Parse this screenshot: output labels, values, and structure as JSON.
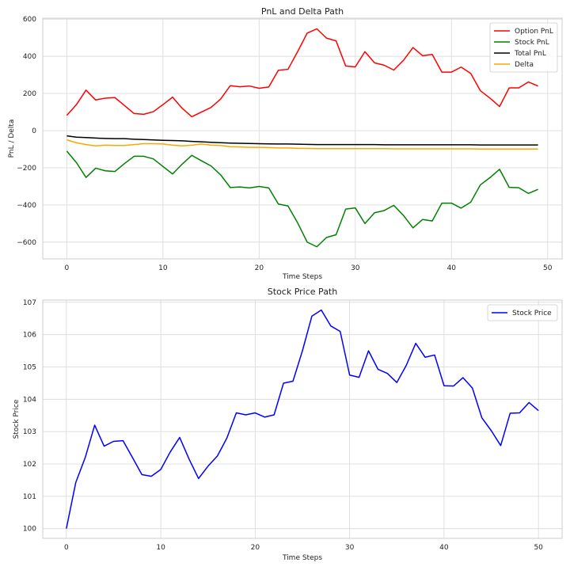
{
  "chart_data": [
    {
      "type": "line",
      "title": "PnL and Delta Path",
      "xlabel": "Time Steps",
      "ylabel": "PnL / Delta",
      "xlim": [
        -2.5,
        51.5
      ],
      "ylim": [
        -690,
        605
      ],
      "xticks": [
        0,
        10,
        20,
        30,
        40,
        50
      ],
      "yticks": [
        -600,
        -400,
        -200,
        0,
        200,
        400,
        600
      ],
      "grid": true,
      "legend": "top-right",
      "x": [
        0,
        1,
        2,
        3,
        4,
        5,
        6,
        7,
        8,
        9,
        10,
        11,
        12,
        13,
        14,
        15,
        16,
        17,
        18,
        19,
        20,
        21,
        22,
        23,
        24,
        25,
        26,
        27,
        28,
        29,
        30,
        31,
        32,
        33,
        34,
        35,
        36,
        37,
        38,
        39,
        40,
        41,
        42,
        43,
        44,
        45,
        46,
        47,
        48,
        49
      ],
      "series": [
        {
          "name": "Option PnL",
          "color": "#ff0000",
          "values": [
            82,
            140,
            218,
            165,
            175,
            178,
            135,
            92,
            88,
            102,
            140,
            180,
            120,
            75,
            100,
            125,
            170,
            242,
            236,
            240,
            228,
            235,
            325,
            330,
            425,
            525,
            548,
            498,
            483,
            348,
            343,
            425,
            365,
            352,
            326,
            378,
            447,
            403,
            410,
            315,
            315,
            342,
            308,
            215,
            175,
            130,
            230,
            230,
            262,
            240
          ]
        },
        {
          "name": "Stock PnL",
          "color": "#008000",
          "values": [
            -110,
            -172,
            -252,
            -202,
            -216,
            -220,
            -177,
            -138,
            -138,
            -152,
            -193,
            -233,
            -180,
            -133,
            -162,
            -190,
            -238,
            -306,
            -303,
            -308,
            -300,
            -308,
            -395,
            -405,
            -496,
            -600,
            -625,
            -575,
            -560,
            -422,
            -416,
            -500,
            -442,
            -430,
            -402,
            -456,
            -523,
            -478,
            -486,
            -390,
            -390,
            -417,
            -385,
            -292,
            -253,
            -208,
            -305,
            -307,
            -338,
            -316
          ]
        },
        {
          "name": "Total PnL",
          "color": "#000000",
          "values": [
            -28,
            -35,
            -37,
            -40,
            -42,
            -43,
            -43,
            -46,
            -48,
            -50,
            -52,
            -53,
            -55,
            -58,
            -60,
            -63,
            -65,
            -67,
            -68,
            -69,
            -70,
            -71,
            -72,
            -72,
            -73,
            -74,
            -75,
            -75,
            -75,
            -75,
            -75,
            -75,
            -75,
            -76,
            -76,
            -76,
            -76,
            -76,
            -76,
            -76,
            -76,
            -76,
            -76,
            -77,
            -77,
            -77,
            -77,
            -77,
            -77,
            -77
          ]
        },
        {
          "name": "Delta",
          "color": "#ffa500",
          "values": [
            -50,
            -65,
            -75,
            -82,
            -78,
            -80,
            -80,
            -75,
            -70,
            -70,
            -72,
            -78,
            -82,
            -78,
            -72,
            -78,
            -80,
            -86,
            -88,
            -90,
            -90,
            -91,
            -93,
            -93,
            -95,
            -96,
            -97,
            -97,
            -97,
            -97,
            -97,
            -97,
            -97,
            -97,
            -98,
            -98,
            -98,
            -98,
            -98,
            -98,
            -98,
            -98,
            -98,
            -99,
            -99,
            -99,
            -99,
            -99,
            -99,
            -99
          ]
        }
      ]
    },
    {
      "type": "line",
      "title": "Stock Price Path",
      "xlabel": "Time Steps",
      "ylabel": "Stock Price",
      "xlim": [
        -2.5,
        52.5
      ],
      "ylim": [
        99.7,
        107.07
      ],
      "xticks": [
        0,
        10,
        20,
        30,
        40,
        50
      ],
      "yticks": [
        100,
        101,
        102,
        103,
        104,
        105,
        106,
        107
      ],
      "grid": true,
      "legend": "top-right",
      "x": [
        0,
        1,
        2,
        3,
        4,
        5,
        6,
        7,
        8,
        9,
        10,
        11,
        12,
        13,
        14,
        15,
        16,
        17,
        18,
        19,
        20,
        21,
        22,
        23,
        24,
        25,
        26,
        27,
        28,
        29,
        30,
        31,
        32,
        33,
        34,
        35,
        36,
        37,
        38,
        39,
        40,
        41,
        42,
        43,
        44,
        45,
        46,
        47,
        48,
        49,
        50
      ],
      "series": [
        {
          "name": "Stock Price",
          "color": "#0000ff",
          "values": [
            100.0,
            101.43,
            102.2,
            103.2,
            102.55,
            102.7,
            102.72,
            102.2,
            101.67,
            101.62,
            101.83,
            102.37,
            102.82,
            102.15,
            101.55,
            101.93,
            102.25,
            102.8,
            103.58,
            103.52,
            103.58,
            103.45,
            103.52,
            104.5,
            104.56,
            105.5,
            106.57,
            106.76,
            106.27,
            106.1,
            104.75,
            104.68,
            105.5,
            104.93,
            104.8,
            104.52,
            105.05,
            105.73,
            105.3,
            105.37,
            104.42,
            104.41,
            104.67,
            104.35,
            103.43,
            103.03,
            102.57,
            103.57,
            103.58,
            103.9,
            103.65
          ]
        }
      ]
    }
  ]
}
